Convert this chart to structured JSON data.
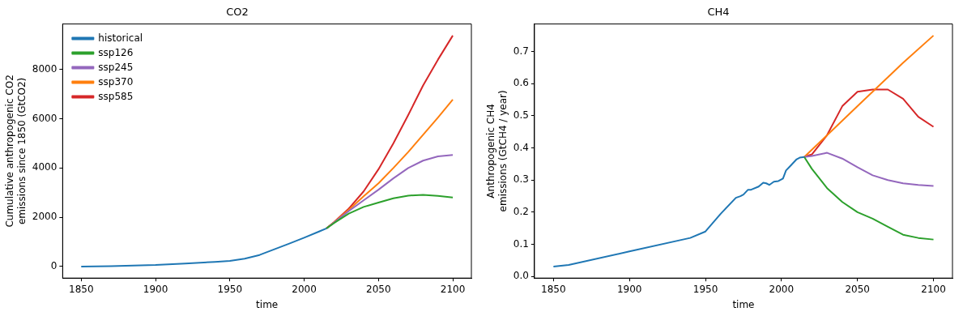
{
  "chart_data": [
    {
      "type": "line",
      "title": "CO2",
      "xlabel": "time",
      "ylabel": "Cumulative anthropogenic CO2\nemissions since 1850 (GtCO2)",
      "xlim": [
        1837.5,
        2112.5
      ],
      "xticks": [
        1850,
        1900,
        1950,
        2000,
        2050,
        2100
      ],
      "ylim": [
        -469,
        9849
      ],
      "yticks": [
        0,
        2000,
        4000,
        6000,
        8000
      ],
      "grid": false,
      "legend": "top left",
      "marker": "none",
      "line_style": "solid",
      "series": [
        {
          "name": "historical",
          "color": "#1f77b4",
          "x": [
            1850,
            1870,
            1900,
            1920,
            1940,
            1950,
            1960,
            1970,
            1980,
            1990,
            2000,
            2010,
            2015
          ],
          "values": [
            0,
            15,
            60,
            120,
            190,
            230,
            320,
            470,
            700,
            930,
            1170,
            1420,
            1550
          ]
        },
        {
          "name": "ssp126",
          "color": "#2ca02c",
          "x": [
            2015,
            2020,
            2030,
            2040,
            2050,
            2060,
            2070,
            2080,
            2090,
            2100
          ],
          "values": [
            1550,
            1760,
            2150,
            2420,
            2600,
            2770,
            2880,
            2910,
            2870,
            2800
          ]
        },
        {
          "name": "ssp245",
          "color": "#9467bd",
          "x": [
            2015,
            2020,
            2030,
            2040,
            2050,
            2060,
            2070,
            2080,
            2090,
            2100
          ],
          "values": [
            1550,
            1780,
            2250,
            2690,
            3120,
            3580,
            4000,
            4300,
            4470,
            4530
          ]
        },
        {
          "name": "ssp370",
          "color": "#ff7f0e",
          "x": [
            2015,
            2020,
            2030,
            2040,
            2050,
            2060,
            2070,
            2080,
            2090,
            2100
          ],
          "values": [
            1550,
            1790,
            2300,
            2850,
            3380,
            4000,
            4650,
            5350,
            6050,
            6780
          ]
        },
        {
          "name": "ssp585",
          "color": "#d62728",
          "x": [
            2015,
            2020,
            2030,
            2040,
            2050,
            2060,
            2070,
            2080,
            2090,
            2100
          ],
          "values": [
            1550,
            1800,
            2350,
            3050,
            3950,
            5000,
            6150,
            7350,
            8400,
            9380
          ]
        }
      ]
    },
    {
      "type": "line",
      "title": "CH4",
      "xlabel": "time",
      "ylabel": "Anthropogenic CH4\nemissions (GtCH4 / year)",
      "xlim": [
        1837.5,
        2112.5
      ],
      "xticks": [
        1850,
        1900,
        1950,
        2000,
        2050,
        2100
      ],
      "ylim": [
        -0.005,
        0.786
      ],
      "yticks": [
        {
          "value": 0,
          "label": "0.0"
        },
        0.1,
        0.2,
        0.3,
        0.4,
        0.5,
        0.6,
        0.7
      ],
      "grid": false,
      "marker": "none",
      "line_style": "solid",
      "series": [
        {
          "color": "#1f77b4",
          "x": [
            1850,
            1860,
            1900,
            1940,
            1950,
            1960,
            1970,
            1973,
            1975,
            1978,
            1980,
            1985,
            1988,
            1990,
            1992,
            1995,
            1998,
            2001,
            2003,
            2006,
            2008,
            2010,
            2012,
            2015
          ],
          "values": [
            0.031,
            0.036,
            0.078,
            0.12,
            0.14,
            0.195,
            0.245,
            0.25,
            0.255,
            0.27,
            0.27,
            0.28,
            0.292,
            0.29,
            0.285,
            0.295,
            0.297,
            0.305,
            0.33,
            0.345,
            0.355,
            0.365,
            0.37,
            0.372
          ]
        },
        {
          "color": "#2ca02c",
          "x": [
            2015,
            2020,
            2030,
            2040,
            2050,
            2060,
            2070,
            2080,
            2090,
            2100
          ],
          "values": [
            0.372,
            0.335,
            0.275,
            0.232,
            0.2,
            0.18,
            0.155,
            0.13,
            0.12,
            0.115
          ]
        },
        {
          "color": "#9467bd",
          "x": [
            2015,
            2020,
            2030,
            2040,
            2050,
            2060,
            2070,
            2080,
            2090,
            2100
          ],
          "values": [
            0.372,
            0.375,
            0.385,
            0.367,
            0.34,
            0.315,
            0.3,
            0.29,
            0.285,
            0.282
          ]
        },
        {
          "color": "#ff7f0e",
          "x": [
            2015,
            2050,
            2080,
            2100
          ],
          "values": [
            0.372,
            0.53,
            0.665,
            0.75
          ]
        },
        {
          "color": "#d62728",
          "x": [
            2015,
            2020,
            2030,
            2040,
            2050,
            2060,
            2070,
            2080,
            2090,
            2100
          ],
          "values": [
            0.372,
            0.38,
            0.44,
            0.53,
            0.575,
            0.582,
            0.582,
            0.553,
            0.497,
            0.466
          ]
        }
      ]
    }
  ]
}
